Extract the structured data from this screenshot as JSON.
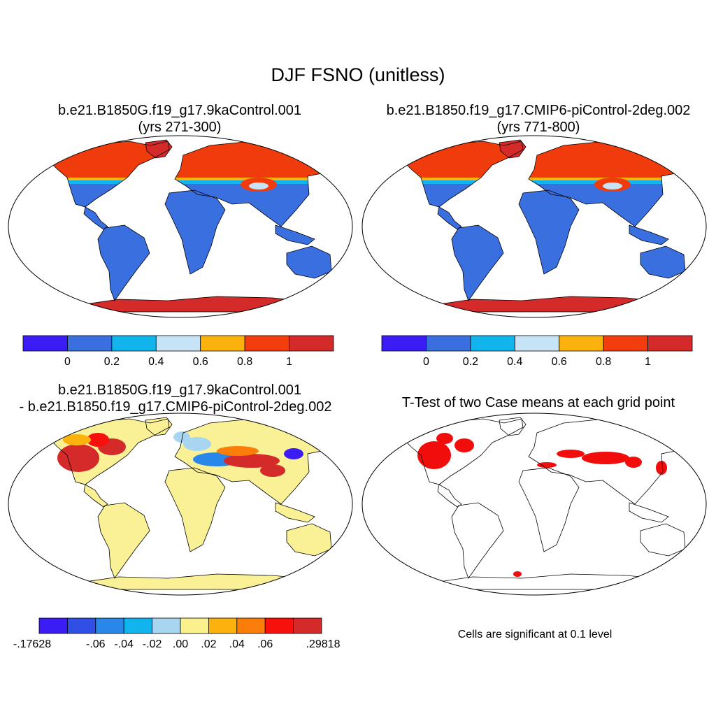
{
  "title": "DJF FSNO (unitless)",
  "panels": [
    {
      "id": "case1",
      "title_line1": "b.e21.B1850G.f19_g17.9kaControl.001",
      "title_line2": "(yrs 271-300)",
      "fields": {
        "north_high": "#f03c0c",
        "midlat": "#3a6fe0",
        "mountain": "#f03c0c",
        "antarctica": "#d42a2a",
        "greenland": "#d42a2a",
        "land": "#3a6fe0"
      }
    },
    {
      "id": "case2",
      "title_line1": "b.e21.B1850.f19_g17.CMIP6-piControl-2deg.002",
      "title_line2": "(yrs 771-800)",
      "fields": {
        "north_high": "#f03c0c",
        "midlat": "#3a6fe0",
        "mountain": "#f03c0c",
        "antarctica": "#d42a2a",
        "greenland": "#d42a2a",
        "land": "#3a6fe0"
      }
    },
    {
      "id": "diff",
      "title_line1": "b.e21.B1850G.f19_g17.9kaControl.001",
      "title_line2": "- b.e21.B1850.f19_g17.CMIP6-piControl-2deg.002"
    },
    {
      "id": "ttest",
      "title_line1": "T-Test of two Case means at each grid point",
      "note": "Cells are significant at 0.1 level"
    }
  ],
  "colorbar_case": {
    "colors": [
      "#3b1cf5",
      "#3a6fe0",
      "#12b4ee",
      "#c6e4f5",
      "#fbb20c",
      "#f43d0d",
      "#d42a2a"
    ],
    "tick_labels": [
      "0",
      "0.2",
      "0.4",
      "0.6",
      "0.8",
      "1"
    ]
  },
  "colorbar_diff": {
    "colors": [
      "#3b1cf5",
      "#2f4fe6",
      "#2887e8",
      "#12b4ee",
      "#a8d6f0",
      "#fbf18c",
      "#fbb20c",
      "#fb7e0a",
      "#f8100c",
      "#d42a2a"
    ],
    "tick_labels": [
      "-.17628",
      "-.06",
      "-.04",
      "-.02",
      ".00",
      ".02",
      ".04",
      ".06",
      ".29818"
    ]
  },
  "map_colors": {
    "diff_background": "#faf096",
    "significant": "#f20d0d",
    "outline": "#000000"
  }
}
